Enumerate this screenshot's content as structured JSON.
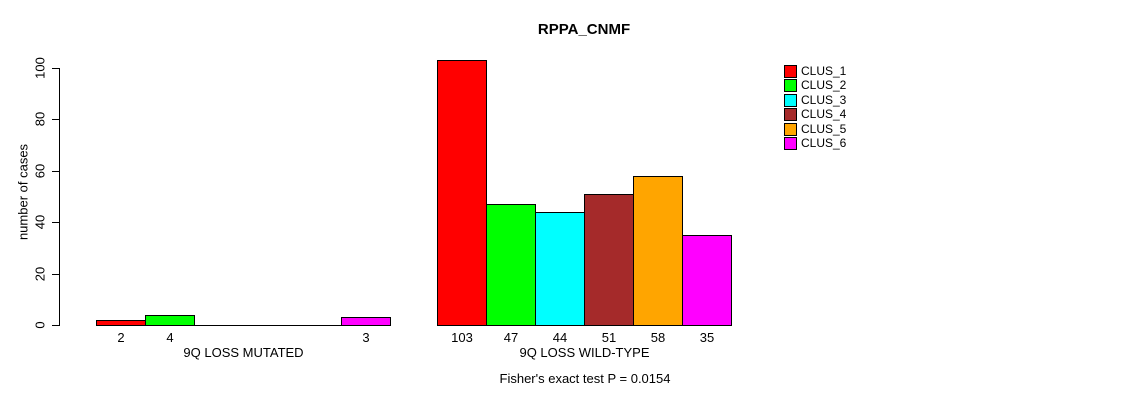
{
  "chart_data": {
    "type": "bar",
    "title": "RPPA_CNMF",
    "ylabel": "number of cases",
    "xlabel": "",
    "yticks": [
      0,
      20,
      40,
      60,
      80,
      100
    ],
    "ylim": [
      0,
      103
    ],
    "grid": false,
    "legend_position": "right",
    "series": [
      {
        "name": "CLUS_1",
        "color": "#FF0000"
      },
      {
        "name": "CLUS_2",
        "color": "#00FF00"
      },
      {
        "name": "CLUS_3",
        "color": "#00FFFF"
      },
      {
        "name": "CLUS_4",
        "color": "#A52A2A"
      },
      {
        "name": "CLUS_5",
        "color": "#FFA500"
      },
      {
        "name": "CLUS_6",
        "color": "#FF00FF"
      }
    ],
    "groups": [
      {
        "label": "9Q LOSS MUTATED",
        "values": [
          2,
          4,
          0,
          0,
          0,
          3
        ]
      },
      {
        "label": "9Q LOSS WILD-TYPE",
        "values": [
          103,
          47,
          44,
          51,
          58,
          35
        ]
      }
    ],
    "annotation": "Fisher's exact test P = 0.0154",
    "bar_border_color": "#000000",
    "axis_color": "#000000"
  }
}
